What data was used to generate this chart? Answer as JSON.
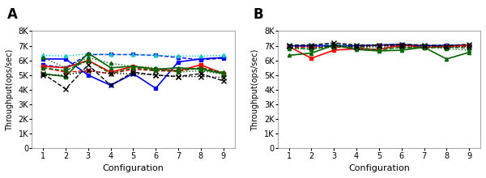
{
  "panel_A": {
    "label": "A",
    "series": [
      {
        "color": "#0000ff",
        "linestyle": "-",
        "marker": "s",
        "markersize": 3,
        "linewidth": 1.2,
        "values": [
          6100,
          6100,
          5000,
          4300,
          5100,
          4100,
          5900,
          6100,
          6200
        ]
      },
      {
        "color": "#0000ff",
        "linestyle": "--",
        "marker": "s",
        "markersize": 3,
        "linewidth": 1.0,
        "values": [
          5700,
          5500,
          6400,
          6400,
          6400,
          6350,
          6200,
          6050,
          6150
        ]
      },
      {
        "color": "#00cccc",
        "linestyle": ":",
        "marker": "^",
        "markersize": 3,
        "linewidth": 1.0,
        "values": [
          6350,
          6300,
          6450,
          6400,
          6400,
          6350,
          6300,
          6300,
          6350
        ]
      },
      {
        "color": "#ff0000",
        "linestyle": "-",
        "marker": "s",
        "markersize": 3,
        "linewidth": 1.2,
        "values": [
          5600,
          5500,
          6000,
          5200,
          5600,
          5400,
          5300,
          5700,
          5100
        ]
      },
      {
        "color": "#ff0000",
        "linestyle": "--",
        "marker": "s",
        "markersize": 3,
        "linewidth": 1.0,
        "values": [
          5500,
          5200,
          5300,
          5100,
          5400,
          5300,
          5250,
          5500,
          5100
        ]
      },
      {
        "color": "#006400",
        "linestyle": "-",
        "marker": "^",
        "markersize": 3,
        "linewidth": 1.2,
        "values": [
          5100,
          4900,
          6500,
          5500,
          5600,
          5400,
          5500,
          5400,
          5100
        ]
      },
      {
        "color": "#006400",
        "linestyle": "--",
        "marker": "^",
        "markersize": 3,
        "linewidth": 1.0,
        "values": [
          5500,
          5300,
          6000,
          5100,
          5500,
          5300,
          5300,
          5500,
          5200
        ]
      },
      {
        "color": "#006400",
        "linestyle": ":",
        "marker": "^",
        "markersize": 3,
        "linewidth": 1.0,
        "values": [
          6200,
          5500,
          6200,
          5800,
          5600,
          5500,
          5200,
          5300,
          5050
        ]
      },
      {
        "color": "#000000",
        "linestyle": "--",
        "marker": "x",
        "markersize": 4,
        "linewidth": 1.0,
        "values": [
          5100,
          4050,
          5700,
          4300,
          5200,
          5000,
          4900,
          5100,
          4600
        ]
      },
      {
        "color": "#000000",
        "linestyle": ":",
        "marker": "x",
        "markersize": 4,
        "linewidth": 1.0,
        "values": [
          5000,
          5000,
          5300,
          5100,
          5100,
          5000,
          4900,
          4900,
          4850
        ]
      }
    ],
    "xlim": [
      0.5,
      9.5
    ],
    "ylim": [
      0,
      8000
    ],
    "yticks": [
      0,
      1000,
      2000,
      3000,
      4000,
      5000,
      6000,
      7000,
      8000
    ],
    "yticklabels": [
      "0",
      "1K",
      "2K",
      "3K",
      "4K",
      "5K",
      "6K",
      "7K",
      "8K"
    ],
    "xticks": [
      1,
      2,
      3,
      4,
      5,
      6,
      7,
      8,
      9
    ],
    "xlabel": "Configuration",
    "ylabel": "Throughput(ops/sec)"
  },
  "panel_B": {
    "label": "B",
    "series": [
      {
        "color": "#0000ff",
        "linestyle": "-",
        "marker": "s",
        "markersize": 3,
        "linewidth": 1.2,
        "values": [
          7000,
          7000,
          7000,
          7000,
          7050,
          7100,
          7000,
          7050,
          7050
        ]
      },
      {
        "color": "#0000ff",
        "linestyle": "--",
        "marker": "s",
        "markersize": 3,
        "linewidth": 1.0,
        "values": [
          6950,
          7000,
          7050,
          7000,
          7000,
          7000,
          7000,
          7050,
          7050
        ]
      },
      {
        "color": "#00cccc",
        "linestyle": ":",
        "marker": "^",
        "markersize": 3,
        "linewidth": 1.0,
        "values": [
          7050,
          7050,
          7100,
          7050,
          7100,
          7050,
          7050,
          7050,
          7050
        ]
      },
      {
        "color": "#ff0000",
        "linestyle": "-",
        "marker": "s",
        "markersize": 3,
        "linewidth": 1.2,
        "values": [
          6950,
          6150,
          6700,
          6800,
          6750,
          7050,
          6900,
          6950,
          7050
        ]
      },
      {
        "color": "#ff0000",
        "linestyle": "--",
        "marker": "s",
        "markersize": 3,
        "linewidth": 1.0,
        "values": [
          6900,
          6900,
          6900,
          6900,
          7050,
          6900,
          6850,
          7000,
          6950
        ]
      },
      {
        "color": "#006400",
        "linestyle": "-",
        "marker": "^",
        "markersize": 3,
        "linewidth": 1.2,
        "values": [
          6350,
          6500,
          7050,
          6750,
          6650,
          6700,
          6900,
          6100,
          6550
        ]
      },
      {
        "color": "#006400",
        "linestyle": "--",
        "marker": "^",
        "markersize": 3,
        "linewidth": 1.0,
        "values": [
          6900,
          6750,
          7050,
          6900,
          6700,
          6900,
          6850,
          6900,
          6850
        ]
      },
      {
        "color": "#006400",
        "linestyle": ":",
        "marker": "^",
        "markersize": 3,
        "linewidth": 1.0,
        "values": [
          6800,
          6800,
          6900,
          6900,
          6900,
          6850,
          6950,
          6800,
          6700
        ]
      },
      {
        "color": "#000000",
        "linestyle": "--",
        "marker": "x",
        "markersize": 4,
        "linewidth": 1.0,
        "values": [
          7050,
          7050,
          7200,
          7050,
          7050,
          7100,
          7050,
          7000,
          7100
        ]
      },
      {
        "color": "#000000",
        "linestyle": ":",
        "marker": "x",
        "markersize": 4,
        "linewidth": 1.0,
        "values": [
          7000,
          6950,
          7000,
          6950,
          7000,
          7000,
          7000,
          6900,
          6950
        ]
      }
    ],
    "xlim": [
      0.5,
      9.5
    ],
    "ylim": [
      0,
      8000
    ],
    "yticks": [
      0,
      1000,
      2000,
      3000,
      4000,
      5000,
      6000,
      7000,
      8000
    ],
    "yticklabels": [
      "0",
      "1K",
      "2K",
      "3K",
      "4K",
      "5K",
      "6K",
      "7K",
      "8K"
    ],
    "xticks": [
      1,
      2,
      3,
      4,
      5,
      6,
      7,
      8,
      9
    ],
    "xlabel": "Configuration",
    "ylabel": "Throughput(ops/sec)"
  },
  "figsize": [
    6.0,
    2.2
  ],
  "dpi": 100,
  "bg_color": "#ffffff",
  "tick_fontsize": 7,
  "label_fontsize": 8,
  "panel_label_fontsize": 12
}
